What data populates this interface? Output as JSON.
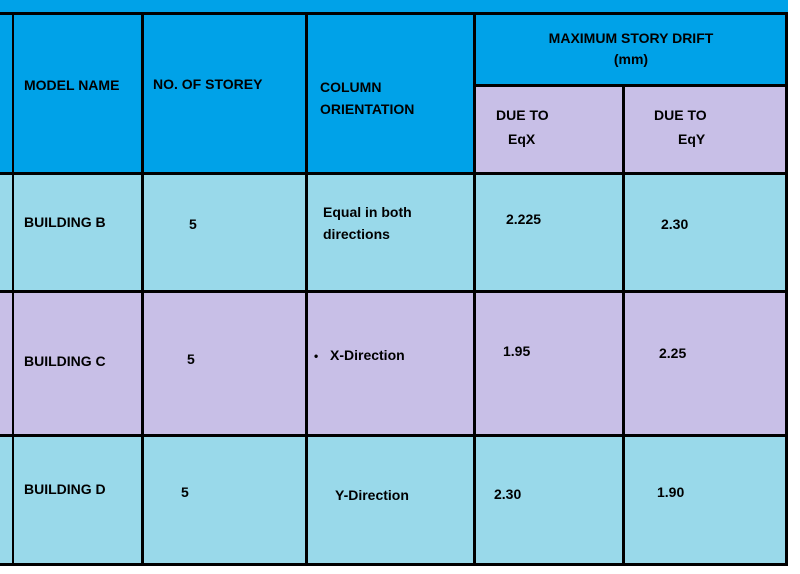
{
  "header": {
    "model_name": "MODEL NAME",
    "no_of_storey": "NO. OF STOREY",
    "column_orientation_1": "COLUMN",
    "column_orientation_2": "ORIENTATION",
    "max_drift_1": "MAXIMUM STORY DRIFT",
    "max_drift_2": "(mm)",
    "due_to_x_1": "DUE TO",
    "due_to_x_2": "EqX",
    "due_to_y_1": "DUE TO",
    "due_to_y_2": "EqY"
  },
  "rows": [
    {
      "model": "BUILDING B",
      "storey": "5",
      "orientation_1": "Equal in both",
      "orientation_2": "directions",
      "drift_x": "2.225",
      "drift_y": "2.30"
    },
    {
      "model": "BUILDING C",
      "storey": "5",
      "orientation_bullet": "•",
      "orientation_1": "X-Direction",
      "drift_x": "1.95",
      "drift_y": "2.25"
    },
    {
      "model": "BUILDING D",
      "storey": "5",
      "orientation_1": "Y-Direction",
      "drift_x": "2.30",
      "drift_y": "1.90"
    }
  ],
  "colors": {
    "header_blue": "#00a2e8",
    "lavender": "#c8bfe7",
    "light_blue": "#99d9ea",
    "grid_line": "#000000"
  }
}
